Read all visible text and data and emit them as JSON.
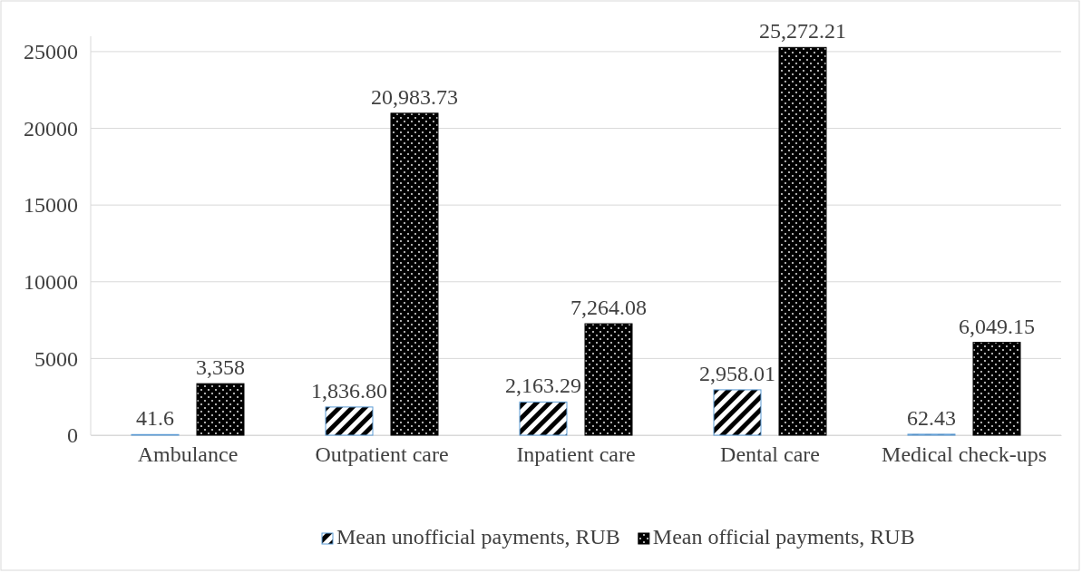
{
  "chart_data": {
    "type": "bar",
    "categories": [
      "Ambulance",
      "Outpatient care",
      "Inpatient care",
      "Dental care",
      "Medical check-ups"
    ],
    "series": [
      {
        "name": "Mean unofficial payments, RUB",
        "color": "#5b9bd5",
        "values": [
          41.6,
          1836.8,
          2163.29,
          2958.01,
          62.43
        ],
        "value_labels": [
          "41.6",
          "1,836.80",
          "2,163.29",
          "2,958.01",
          "62.43"
        ]
      },
      {
        "name": "Mean official payments, RUB",
        "color": "#000000",
        "values": [
          3358,
          20983.73,
          7264.08,
          25272.21,
          6049.15
        ],
        "value_labels": [
          "3,358",
          "20,983.73",
          "7,264.08",
          "25,272.21",
          "6,049.15"
        ]
      }
    ],
    "ylim": [
      0,
      26000
    ],
    "yticks": [
      0,
      5000,
      10000,
      15000,
      20000,
      25000
    ],
    "grid": "y",
    "legend": "bottom"
  }
}
